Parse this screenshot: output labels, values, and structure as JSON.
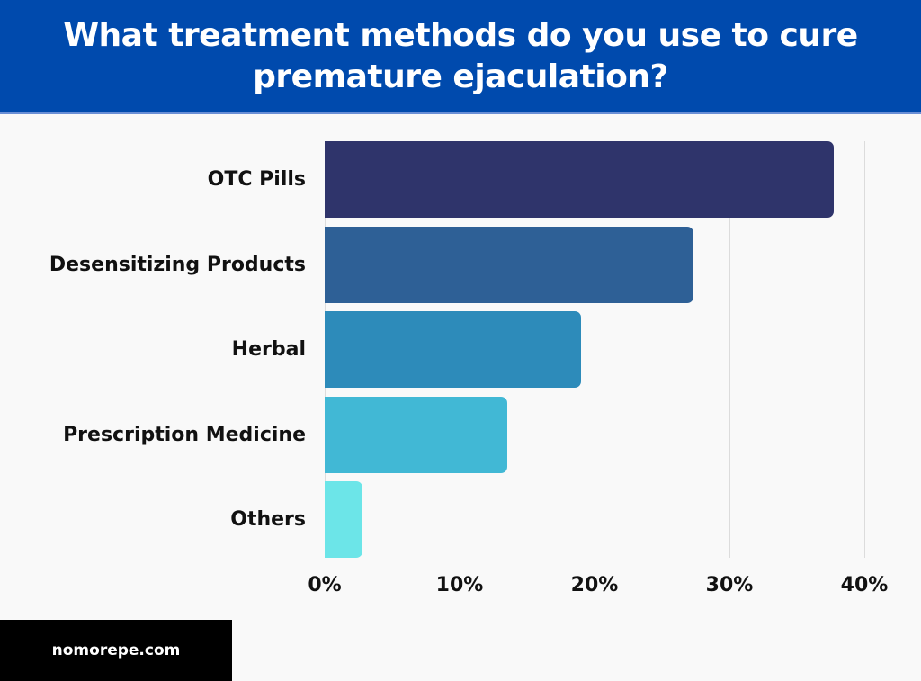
{
  "header": {
    "title": "What treatment methods do you use to cure premature ejaculation?"
  },
  "footer": {
    "site": "nomorepe.com"
  },
  "colors": {
    "header_bg": "#004aad",
    "bars": [
      "#2f346b",
      "#2e6096",
      "#2d8bba",
      "#41b8d5",
      "#6ce5e8"
    ]
  },
  "axis": {
    "ticks": [
      "0%",
      "10%",
      "20%",
      "30%",
      "40%"
    ]
  },
  "chart_data": {
    "type": "bar",
    "orientation": "horizontal",
    "title": "What treatment methods do you use to cure premature ejaculation?",
    "categories": [
      "OTC Pills",
      "Desensitizing Products",
      "Herbal",
      "Prescription Medicine",
      "Others"
    ],
    "values": [
      37.7,
      27.3,
      19,
      13.5,
      2.8
    ],
    "unit": "%",
    "xlabel": "",
    "ylabel": "",
    "xlim": [
      0,
      40
    ],
    "xticks": [
      "0%",
      "10%",
      "20%",
      "30%",
      "40%"
    ],
    "grid": true,
    "legend": "none"
  }
}
